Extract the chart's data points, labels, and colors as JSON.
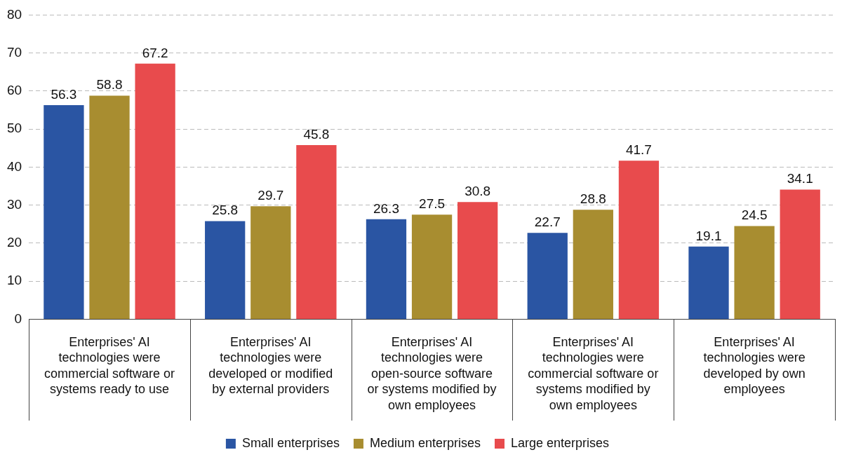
{
  "chart_data": {
    "type": "bar",
    "categories": [
      "Enterprises' AI technologies were commercial software or systems ready to use",
      "Enterprises' AI technologies were developed or modified by external providers",
      "Enterprises' AI technologies were open-source software or systems modified by own employees",
      "Enterprises' AI technologies were commercial software or systems modified by own employees",
      "Enterprises' AI technologies were developed by own employees"
    ],
    "series": [
      {
        "name": "Small enterprises",
        "color": "#2a55a3",
        "values": [
          56.3,
          25.8,
          26.3,
          22.7,
          19.1
        ]
      },
      {
        "name": "Medium enterprises",
        "color": "#a88d30",
        "values": [
          58.8,
          29.7,
          27.5,
          28.8,
          24.5
        ]
      },
      {
        "name": "Large enterprises",
        "color": "#e84b4d",
        "values": [
          67.2,
          45.8,
          30.8,
          41.7,
          34.1
        ]
      }
    ],
    "ylim": [
      0,
      80
    ],
    "yticks": [
      0,
      10,
      20,
      30,
      40,
      50,
      60,
      70,
      80
    ],
    "grid": "y",
    "legend": "bottom",
    "data_labels": true
  }
}
